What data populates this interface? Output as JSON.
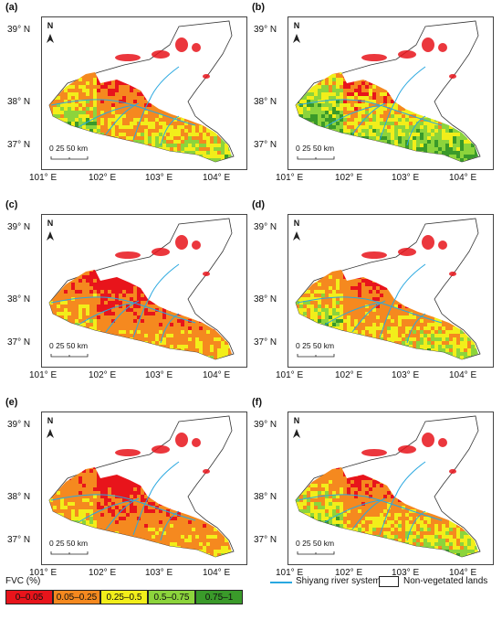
{
  "panels": [
    {
      "label": "(a)",
      "palette": "p1"
    },
    {
      "label": "(b)",
      "palette": "p2"
    },
    {
      "label": "(c)",
      "palette": "p3"
    },
    {
      "label": "(d)",
      "palette": "p4"
    },
    {
      "label": "(e)",
      "palette": "p3"
    },
    {
      "label": "(f)",
      "palette": "p4"
    }
  ],
  "axes": {
    "lat_labels": [
      "39° N",
      "38° N",
      "37° N"
    ],
    "lon_labels": [
      "101° E",
      "102° E",
      "103° E",
      "104° E"
    ]
  },
  "north_arrow": "N",
  "scale_bar": {
    "label": "0  25 50  km"
  },
  "legend": {
    "title": "FVC (%)",
    "classes": [
      {
        "label": "0–0.05",
        "color": "#e8141b"
      },
      {
        "label": "0.05–0.25",
        "color": "#f5891f"
      },
      {
        "label": "0.25–0.5",
        "color": "#f2ee1a"
      },
      {
        "label": "0.5–0.75",
        "color": "#8cd43c"
      },
      {
        "label": "0.75–1",
        "color": "#3a9a2a"
      }
    ],
    "river_label": "Shiyang river system",
    "river_color": "#29a8e0",
    "nonveg_label": "Non-vegetated lands"
  }
}
